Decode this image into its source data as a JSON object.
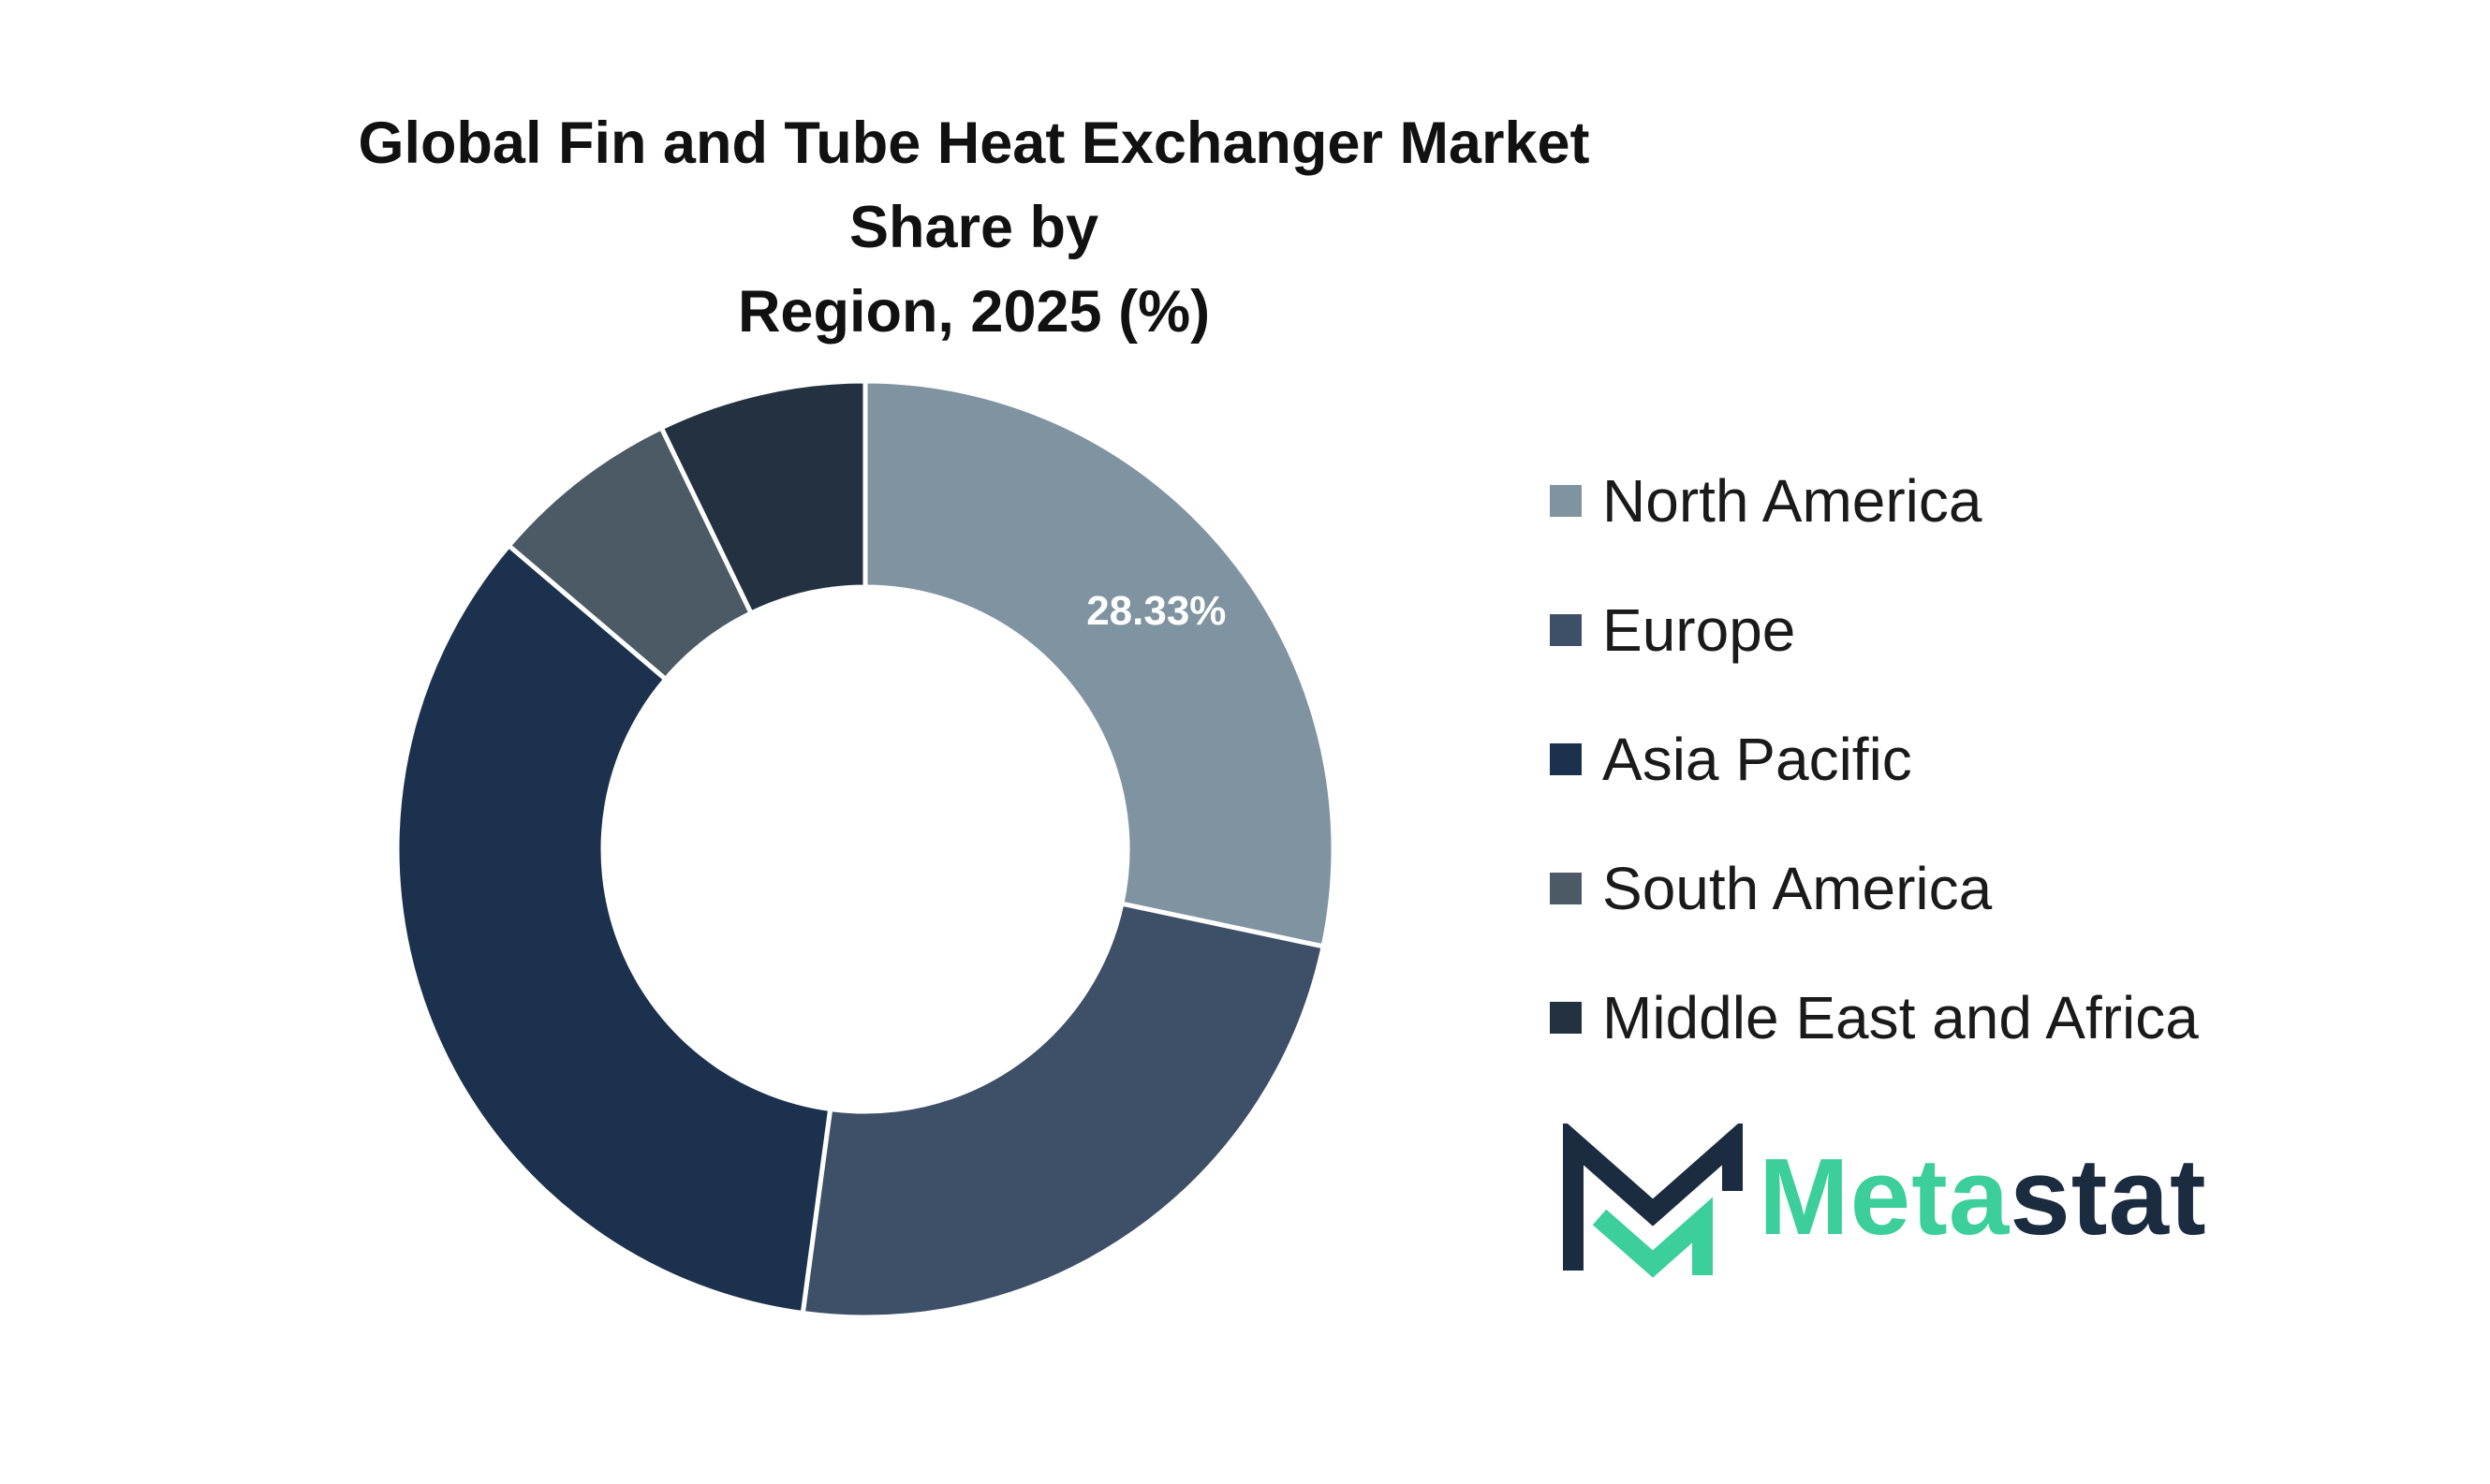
{
  "chart_data": {
    "type": "pie",
    "title": "Global Fin and Tube Heat Exchanger Market Share by Region, 2025 (%)",
    "title_lines": [
      "Global Fin and Tube Heat Exchanger Market Share by",
      "Region, 2025 (%)"
    ],
    "categories": [
      "North America",
      "Europe",
      "Asia Pacific",
      "South America",
      "Middle East and Africa"
    ],
    "values": [
      28.33,
      23.8,
      34.1,
      6.6,
      7.17
    ],
    "colors": [
      "#7f94a0",
      "#3d5068",
      "#1b314d",
      "#4b5a64",
      "#243140"
    ],
    "data_labels": [
      "28.33%",
      "",
      "",
      "",
      ""
    ],
    "donut": true,
    "legend_position": "right"
  },
  "logo": {
    "text_part1": "Meta",
    "text_part2": "stat",
    "color_dark": "#1b2b40",
    "color_accent": "#3ccf9b"
  }
}
